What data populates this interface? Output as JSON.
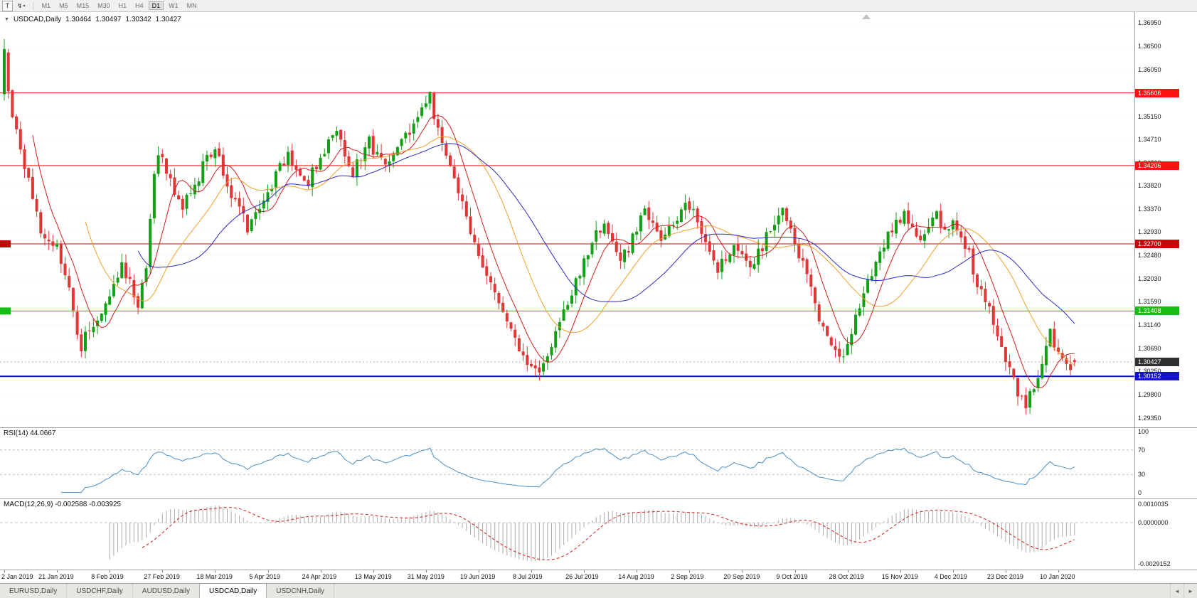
{
  "toolbar": {
    "text_tool_label": "T",
    "object_tool_icon": "↯",
    "caret_icon": "▾",
    "timeframes": [
      "M1",
      "M5",
      "M15",
      "M30",
      "H1",
      "H4",
      "D1",
      "W1",
      "MN"
    ],
    "active_timeframe": "D1"
  },
  "chart_header": {
    "collapse_icon": "▼",
    "symbol_label": "USDCAD,Daily",
    "open": "1.30464",
    "high": "1.30497",
    "low": "1.30342",
    "close": "1.30427"
  },
  "price_scale": {
    "ticks": [
      "1.36950",
      "1.36500",
      "1.36050",
      "1.35600",
      "1.35150",
      "1.34710",
      "1.34260",
      "1.33820",
      "1.33370",
      "1.32930",
      "1.32480",
      "1.32030",
      "1.31590",
      "1.31140",
      "1.30690",
      "1.30250",
      "1.29800",
      "1.29350"
    ],
    "levels": [
      {
        "value": 1.35606,
        "label": "1.35606",
        "color": "#fd1212",
        "width": 1,
        "left_badge": false
      },
      {
        "value": 1.34206,
        "label": "1.34206",
        "color": "#fd1212",
        "width": 1,
        "left_badge": false
      },
      {
        "value": 1.327,
        "label": "1.32700",
        "color": "#c40808",
        "width": 1,
        "left_badge": true
      },
      {
        "value": 1.31408,
        "label": "1.31408",
        "color": "#17bd17",
        "width": 1,
        "left_badge": true
      },
      {
        "value": 1.30152,
        "label": "1.30152",
        "color": "#1313cf",
        "width": 2,
        "left_badge": false
      }
    ],
    "current_price": {
      "value": 1.30427,
      "label": "1.30427",
      "bg": "#2f2f2f"
    }
  },
  "rsi": {
    "title": "RSI(14) 44.0667",
    "period": 14,
    "current": 44.0667,
    "scale_labels": [
      "100",
      "70",
      "30",
      "0"
    ],
    "scale_values": [
      100,
      70,
      30,
      0
    ],
    "dashed_levels": [
      70,
      30
    ],
    "line_color": "#4a90c8"
  },
  "macd": {
    "title": "MACD(12,26,9) -0.002588 -0.003925",
    "fast": 12,
    "slow": 26,
    "signal_period": 9,
    "current_macd": -0.002588,
    "current_signal": -0.003925,
    "scale_labels": [
      "0.0010035",
      "0.0000000",
      "-0.0029152"
    ],
    "histogram_color": "#ababab",
    "signal_color": "#d41f1f"
  },
  "time_axis": [
    "2 Jan 2019",
    "21 Jan 2019",
    "8 Feb 2019",
    "27 Feb 2019",
    "18 Mar 2019",
    "5 Apr 2019",
    "24 Apr 2019",
    "13 May 2019",
    "31 May 2019",
    "19 Jun 2019",
    "8 Jul 2019",
    "26 Jul 2019",
    "14 Aug 2019",
    "2 Sep 2019",
    "20 Sep 2019",
    "9 Oct 2019",
    "28 Oct 2019",
    "15 Nov 2019",
    "4 Dec 2019",
    "23 Dec 2019",
    "10 Jan 2020"
  ],
  "tabs": {
    "items": [
      "EURUSD,Daily",
      "USDCHF,Daily",
      "AUDUSD,Daily",
      "USDCAD,Daily",
      "USDCNH,Daily"
    ],
    "active": "USDCAD,Daily",
    "scroll_left_icon": "◄",
    "scroll_right_icon": "►"
  },
  "chart_data": {
    "type": "candlestick",
    "symbol": "USDCAD",
    "timeframe": "Daily",
    "num_candles": 265,
    "x_labels_every_n_candles": 13,
    "x_range": [
      "2 Jan 2019",
      "10 Jan 2020"
    ],
    "y_range": [
      1.2917,
      1.3716
    ],
    "up_color": "#14a014",
    "down_color": "#e03636",
    "first_candle": {
      "open": 1.3558,
      "high": 1.3664,
      "low": 1.3546,
      "close": 1.3645
    },
    "last_candle": {
      "open": 1.30464,
      "high": 1.30497,
      "low": 1.30342,
      "close": 1.30427
    },
    "close_waypoints": [
      [
        0,
        1.364
      ],
      [
        1,
        1.3575
      ],
      [
        2,
        1.352
      ],
      [
        3,
        1.348
      ],
      [
        5,
        1.342
      ],
      [
        7,
        1.336
      ],
      [
        9,
        1.33
      ],
      [
        11,
        1.3285
      ],
      [
        13,
        1.3265
      ],
      [
        15,
        1.322
      ],
      [
        17,
        1.313
      ],
      [
        19,
        1.3075
      ],
      [
        21,
        1.3105
      ],
      [
        23,
        1.313
      ],
      [
        25,
        1.316
      ],
      [
        27,
        1.319
      ],
      [
        29,
        1.3225
      ],
      [
        31,
        1.3195
      ],
      [
        33,
        1.314
      ],
      [
        35,
        1.323
      ],
      [
        36,
        1.332
      ],
      [
        37,
        1.34
      ],
      [
        38,
        1.3445
      ],
      [
        40,
        1.3415
      ],
      [
        42,
        1.337
      ],
      [
        44,
        1.3345
      ],
      [
        46,
        1.337
      ],
      [
        48,
        1.34
      ],
      [
        50,
        1.3435
      ],
      [
        52,
        1.345
      ],
      [
        54,
        1.3405
      ],
      [
        56,
        1.3365
      ],
      [
        58,
        1.3335
      ],
      [
        60,
        1.33
      ],
      [
        62,
        1.333
      ],
      [
        64,
        1.336
      ],
      [
        66,
        1.3385
      ],
      [
        68,
        1.3415
      ],
      [
        70,
        1.344
      ],
      [
        72,
        1.341
      ],
      [
        74,
        1.338
      ],
      [
        76,
        1.3405
      ],
      [
        78,
        1.3435
      ],
      [
        80,
        1.3465
      ],
      [
        82,
        1.3485
      ],
      [
        84,
        1.3445
      ],
      [
        86,
        1.341
      ],
      [
        88,
        1.344
      ],
      [
        90,
        1.3465
      ],
      [
        92,
        1.344
      ],
      [
        94,
        1.3415
      ],
      [
        96,
        1.344
      ],
      [
        98,
        1.3465
      ],
      [
        100,
        1.349
      ],
      [
        102,
        1.3515
      ],
      [
        104,
        1.3548
      ],
      [
        105,
        1.3552
      ],
      [
        106,
        1.3515
      ],
      [
        108,
        1.3465
      ],
      [
        110,
        1.3415
      ],
      [
        112,
        1.3368
      ],
      [
        114,
        1.332
      ],
      [
        116,
        1.3278
      ],
      [
        118,
        1.3232
      ],
      [
        120,
        1.319
      ],
      [
        122,
        1.315
      ],
      [
        124,
        1.3112
      ],
      [
        126,
        1.3082
      ],
      [
        128,
        1.3058
      ],
      [
        130,
        1.3038
      ],
      [
        132,
        1.3022
      ],
      [
        134,
        1.306
      ],
      [
        136,
        1.3095
      ],
      [
        138,
        1.3135
      ],
      [
        140,
        1.3175
      ],
      [
        142,
        1.3215
      ],
      [
        144,
        1.3255
      ],
      [
        146,
        1.329
      ],
      [
        148,
        1.331
      ],
      [
        150,
        1.3275
      ],
      [
        152,
        1.3235
      ],
      [
        154,
        1.3262
      ],
      [
        156,
        1.3298
      ],
      [
        158,
        1.333
      ],
      [
        160,
        1.3302
      ],
      [
        162,
        1.3272
      ],
      [
        164,
        1.3295
      ],
      [
        166,
        1.332
      ],
      [
        168,
        1.3345
      ],
      [
        170,
        1.3328
      ],
      [
        172,
        1.329
      ],
      [
        174,
        1.3252
      ],
      [
        176,
        1.3222
      ],
      [
        178,
        1.3248
      ],
      [
        180,
        1.3275
      ],
      [
        182,
        1.3252
      ],
      [
        184,
        1.3228
      ],
      [
        186,
        1.3252
      ],
      [
        188,
        1.3282
      ],
      [
        190,
        1.3312
      ],
      [
        192,
        1.3332
      ],
      [
        194,
        1.3298
      ],
      [
        196,
        1.3252
      ],
      [
        198,
        1.3205
      ],
      [
        200,
        1.3155
      ],
      [
        202,
        1.3108
      ],
      [
        204,
        1.3068
      ],
      [
        206,
        1.3042
      ],
      [
        208,
        1.3082
      ],
      [
        210,
        1.3132
      ],
      [
        212,
        1.3172
      ],
      [
        214,
        1.3212
      ],
      [
        216,
        1.3252
      ],
      [
        218,
        1.3282
      ],
      [
        220,
        1.3308
      ],
      [
        222,
        1.3328
      ],
      [
        224,
        1.3298
      ],
      [
        226,
        1.3278
      ],
      [
        228,
        1.3302
      ],
      [
        230,
        1.3322
      ],
      [
        232,
        1.3302
      ],
      [
        234,
        1.3318
      ],
      [
        236,
        1.3288
      ],
      [
        238,
        1.3248
      ],
      [
        240,
        1.3198
      ],
      [
        242,
        1.3158
      ],
      [
        244,
        1.3118
      ],
      [
        246,
        1.3078
      ],
      [
        248,
        1.3028
      ],
      [
        250,
        1.2985
      ],
      [
        252,
        1.2962
      ],
      [
        254,
        1.2992
      ],
      [
        256,
        1.3042
      ],
      [
        258,
        1.3098
      ],
      [
        260,
        1.3062
      ],
      [
        262,
        1.3032
      ],
      [
        264,
        1.3043
      ]
    ],
    "moving_averages": [
      {
        "name": "fast",
        "period": 8,
        "color": "#d21d1d"
      },
      {
        "name": "medium",
        "period": 21,
        "color": "#efa02c"
      },
      {
        "name": "slow",
        "period": 34,
        "color": "#2b2bc4"
      }
    ],
    "support_resistance": [
      1.35606,
      1.34206,
      1.327,
      1.31408,
      1.30152
    ]
  }
}
